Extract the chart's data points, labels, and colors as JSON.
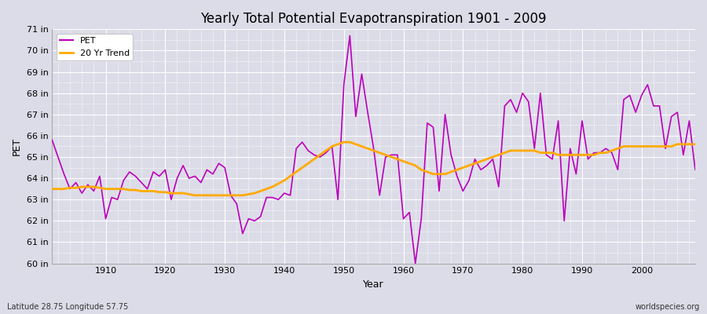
{
  "title": "Yearly Total Potential Evapotranspiration 1901 - 2009",
  "ylabel": "PET",
  "xlabel": "Year",
  "footnote_left": "Latitude 28.75 Longitude 57.75",
  "footnote_right": "worldspecies.org",
  "pet_color": "#bb00bb",
  "trend_color": "#ffaa00",
  "background_color": "#dcdce8",
  "plot_bg_color": "#dcdce8",
  "ylim": [
    60,
    71
  ],
  "yticks": [
    60,
    61,
    62,
    63,
    64,
    65,
    66,
    67,
    68,
    69,
    70,
    71
  ],
  "ytick_labels": [
    "60 in",
    "61 in",
    "62 in",
    "63 in",
    "64 in",
    "65 in",
    "66 in",
    "67 in",
    "68 in",
    "69 in",
    "70 in",
    "71 in"
  ],
  "years": [
    1901,
    1902,
    1903,
    1904,
    1905,
    1906,
    1907,
    1908,
    1909,
    1910,
    1911,
    1912,
    1913,
    1914,
    1915,
    1916,
    1917,
    1918,
    1919,
    1920,
    1921,
    1922,
    1923,
    1924,
    1925,
    1926,
    1927,
    1928,
    1929,
    1930,
    1931,
    1932,
    1933,
    1934,
    1935,
    1936,
    1937,
    1938,
    1939,
    1940,
    1941,
    1942,
    1943,
    1944,
    1945,
    1946,
    1947,
    1948,
    1949,
    1950,
    1951,
    1952,
    1953,
    1954,
    1955,
    1956,
    1957,
    1958,
    1959,
    1960,
    1961,
    1962,
    1963,
    1964,
    1965,
    1966,
    1967,
    1968,
    1969,
    1970,
    1971,
    1972,
    1973,
    1974,
    1975,
    1976,
    1977,
    1978,
    1979,
    1980,
    1981,
    1982,
    1983,
    1984,
    1985,
    1986,
    1987,
    1988,
    1989,
    1990,
    1991,
    1992,
    1993,
    1994,
    1995,
    1996,
    1997,
    1998,
    1999,
    2000,
    2001,
    2002,
    2003,
    2004,
    2005,
    2006,
    2007,
    2008,
    2009
  ],
  "pet": [
    65.8,
    65.0,
    64.2,
    63.5,
    63.8,
    63.3,
    63.7,
    63.4,
    64.1,
    62.1,
    63.1,
    63.0,
    63.9,
    64.3,
    64.1,
    63.8,
    63.5,
    64.3,
    64.1,
    64.4,
    63.0,
    64.0,
    64.6,
    64.0,
    64.1,
    63.8,
    64.4,
    64.2,
    64.7,
    64.5,
    63.2,
    62.8,
    61.4,
    62.1,
    62.0,
    62.2,
    63.1,
    63.1,
    63.0,
    63.3,
    63.2,
    65.4,
    65.7,
    65.3,
    65.1,
    65.0,
    65.2,
    65.5,
    63.0,
    68.4,
    70.7,
    66.9,
    68.9,
    67.1,
    65.4,
    63.2,
    65.0,
    65.1,
    65.1,
    62.1,
    62.4,
    60.0,
    62.1,
    66.6,
    66.4,
    63.4,
    67.0,
    65.1,
    64.1,
    63.4,
    63.9,
    64.9,
    64.4,
    64.6,
    64.9,
    63.6,
    67.4,
    67.7,
    67.1,
    68.0,
    67.6,
    65.4,
    68.0,
    65.1,
    64.9,
    66.7,
    62.0,
    65.4,
    64.2,
    66.7,
    64.9,
    65.2,
    65.2,
    65.4,
    65.2,
    64.4,
    67.7,
    67.9,
    67.1,
    67.9,
    68.4,
    67.4,
    67.4,
    65.4,
    66.9,
    67.1,
    65.1,
    66.7,
    64.4
  ],
  "trend": [
    63.5,
    63.5,
    63.5,
    63.55,
    63.55,
    63.6,
    63.6,
    63.6,
    63.55,
    63.5,
    63.5,
    63.5,
    63.5,
    63.45,
    63.45,
    63.4,
    63.4,
    63.4,
    63.35,
    63.35,
    63.3,
    63.3,
    63.3,
    63.25,
    63.2,
    63.2,
    63.2,
    63.2,
    63.2,
    63.2,
    63.2,
    63.2,
    63.2,
    63.25,
    63.3,
    63.4,
    63.5,
    63.6,
    63.75,
    63.9,
    64.1,
    64.3,
    64.5,
    64.7,
    64.9,
    65.1,
    65.3,
    65.5,
    65.6,
    65.7,
    65.7,
    65.6,
    65.5,
    65.4,
    65.3,
    65.2,
    65.1,
    65.0,
    64.9,
    64.8,
    64.7,
    64.6,
    64.4,
    64.3,
    64.2,
    64.2,
    64.2,
    64.3,
    64.4,
    64.5,
    64.6,
    64.7,
    64.8,
    64.9,
    65.0,
    65.1,
    65.2,
    65.3,
    65.3,
    65.3,
    65.3,
    65.3,
    65.2,
    65.2,
    65.2,
    65.1,
    65.1,
    65.1,
    65.1,
    65.1,
    65.1,
    65.1,
    65.2,
    65.2,
    65.3,
    65.4,
    65.5,
    65.5,
    65.5,
    65.5,
    65.5,
    65.5,
    65.5,
    65.5,
    65.5,
    65.6,
    65.6,
    65.6,
    65.6
  ]
}
